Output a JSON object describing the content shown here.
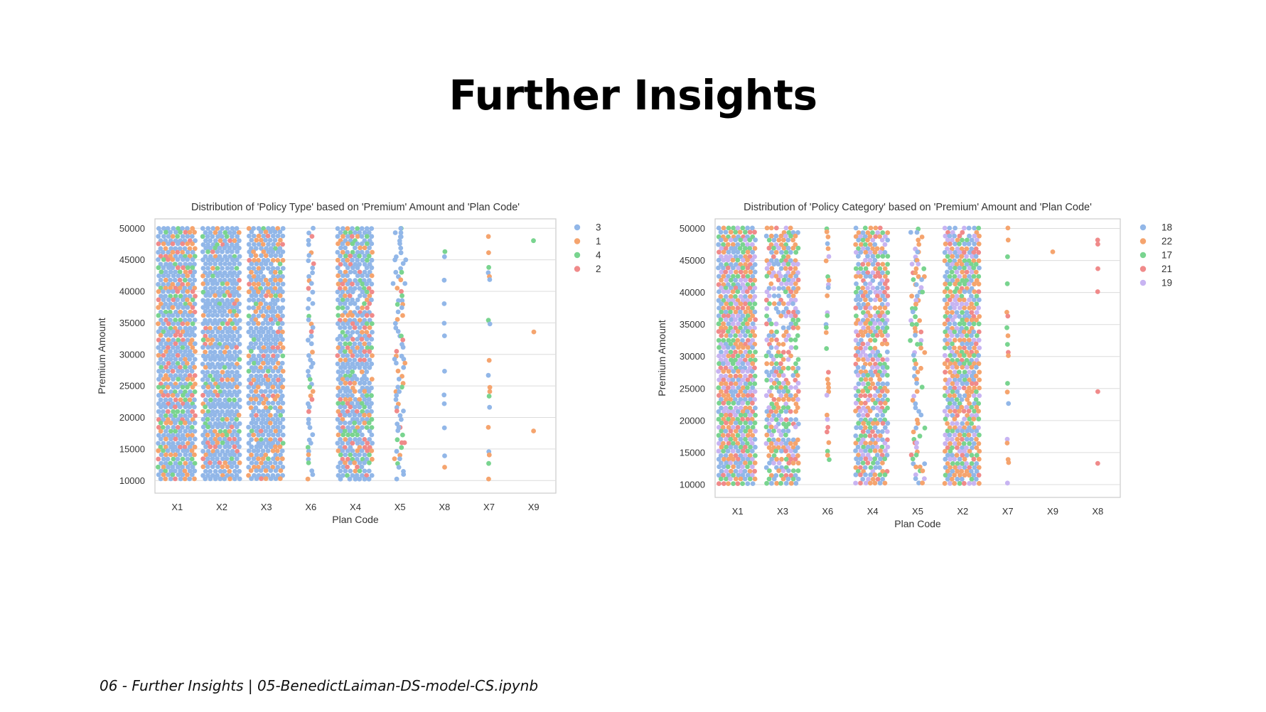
{
  "page": {
    "title": "Further Insights",
    "footer": "06 - Further Insights | 05-BenedictLaiman-DS-model-CS.ipynb"
  },
  "colors": {
    "blue": "#92b7e8",
    "orange": "#f5a46e",
    "green": "#79d48f",
    "red": "#f08a8a",
    "purple": "#c8b4f2",
    "grid": "#dcdcdc",
    "frame": "#cccccc"
  },
  "chart_data": [
    {
      "type": "scatter",
      "subtype": "swarm",
      "title": "Distribution of 'Policy Type' based on 'Premium' Amount and 'Plan Code'",
      "xlabel": "Plan Code",
      "ylabel": "Premium Amount",
      "categories": [
        "X1",
        "X2",
        "X3",
        "X6",
        "X4",
        "X5",
        "X8",
        "X7",
        "X9"
      ],
      "yticks": [
        10000,
        15000,
        20000,
        25000,
        30000,
        35000,
        40000,
        45000,
        50000
      ],
      "ylim": [
        8000,
        51500
      ],
      "grid": true,
      "legend_position": "right",
      "legend": [
        {
          "label": "3",
          "color": "#92b7e8"
        },
        {
          "label": "1",
          "color": "#f5a46e"
        },
        {
          "label": "4",
          "color": "#79d48f"
        },
        {
          "label": "2",
          "color": "#f08a8a"
        }
      ],
      "category_density": [
        1.0,
        1.0,
        0.85,
        0.22,
        0.85,
        0.32,
        0.03,
        0.06,
        0.03
      ],
      "category_mix": [
        [
          0.62,
          0.16,
          0.12,
          0.1
        ],
        [
          0.72,
          0.14,
          0.08,
          0.06
        ],
        [
          0.7,
          0.18,
          0.06,
          0.06
        ],
        [
          0.7,
          0.14,
          0.06,
          0.1
        ],
        [
          0.62,
          0.14,
          0.14,
          0.1
        ],
        [
          0.66,
          0.12,
          0.14,
          0.08
        ],
        [
          0.45,
          0.35,
          0.2,
          0.0
        ],
        [
          0.45,
          0.3,
          0.25,
          0.0
        ],
        [
          0.45,
          0.25,
          0.3,
          0.0
        ]
      ]
    },
    {
      "type": "scatter",
      "subtype": "swarm",
      "title": "Distribution of 'Policy Category' based on 'Premium' Amount and 'Plan Code'",
      "xlabel": "Plan Code",
      "ylabel": "Premium Amount",
      "categories": [
        "X1",
        "X3",
        "X6",
        "X4",
        "X5",
        "X2",
        "X7",
        "X9",
        "X8"
      ],
      "yticks": [
        10000,
        15000,
        20000,
        25000,
        30000,
        35000,
        40000,
        45000,
        50000
      ],
      "ylim": [
        8000,
        51500
      ],
      "grid": true,
      "legend_position": "right",
      "legend": [
        {
          "label": "18",
          "color": "#92b7e8"
        },
        {
          "label": "22",
          "color": "#f5a46e"
        },
        {
          "label": "17",
          "color": "#79d48f"
        },
        {
          "label": "21",
          "color": "#f08a8a"
        },
        {
          "label": "19",
          "color": "#c8b4f2"
        }
      ],
      "category_density": [
        1.0,
        0.65,
        0.12,
        0.75,
        0.35,
        0.85,
        0.08,
        0.004,
        0.008
      ],
      "category_mix": [
        [
          0.24,
          0.24,
          0.2,
          0.14,
          0.18
        ],
        [
          0.24,
          0.26,
          0.18,
          0.12,
          0.2
        ],
        [
          0.2,
          0.45,
          0.2,
          0.05,
          0.1
        ],
        [
          0.24,
          0.26,
          0.18,
          0.12,
          0.2
        ],
        [
          0.18,
          0.4,
          0.18,
          0.08,
          0.16
        ],
        [
          0.24,
          0.26,
          0.18,
          0.12,
          0.2
        ],
        [
          0.16,
          0.5,
          0.24,
          0.05,
          0.05
        ],
        [
          0.0,
          1.0,
          0.0,
          0.0,
          0.0
        ],
        [
          0.0,
          0.0,
          0.0,
          1.0,
          0.0
        ]
      ]
    }
  ]
}
